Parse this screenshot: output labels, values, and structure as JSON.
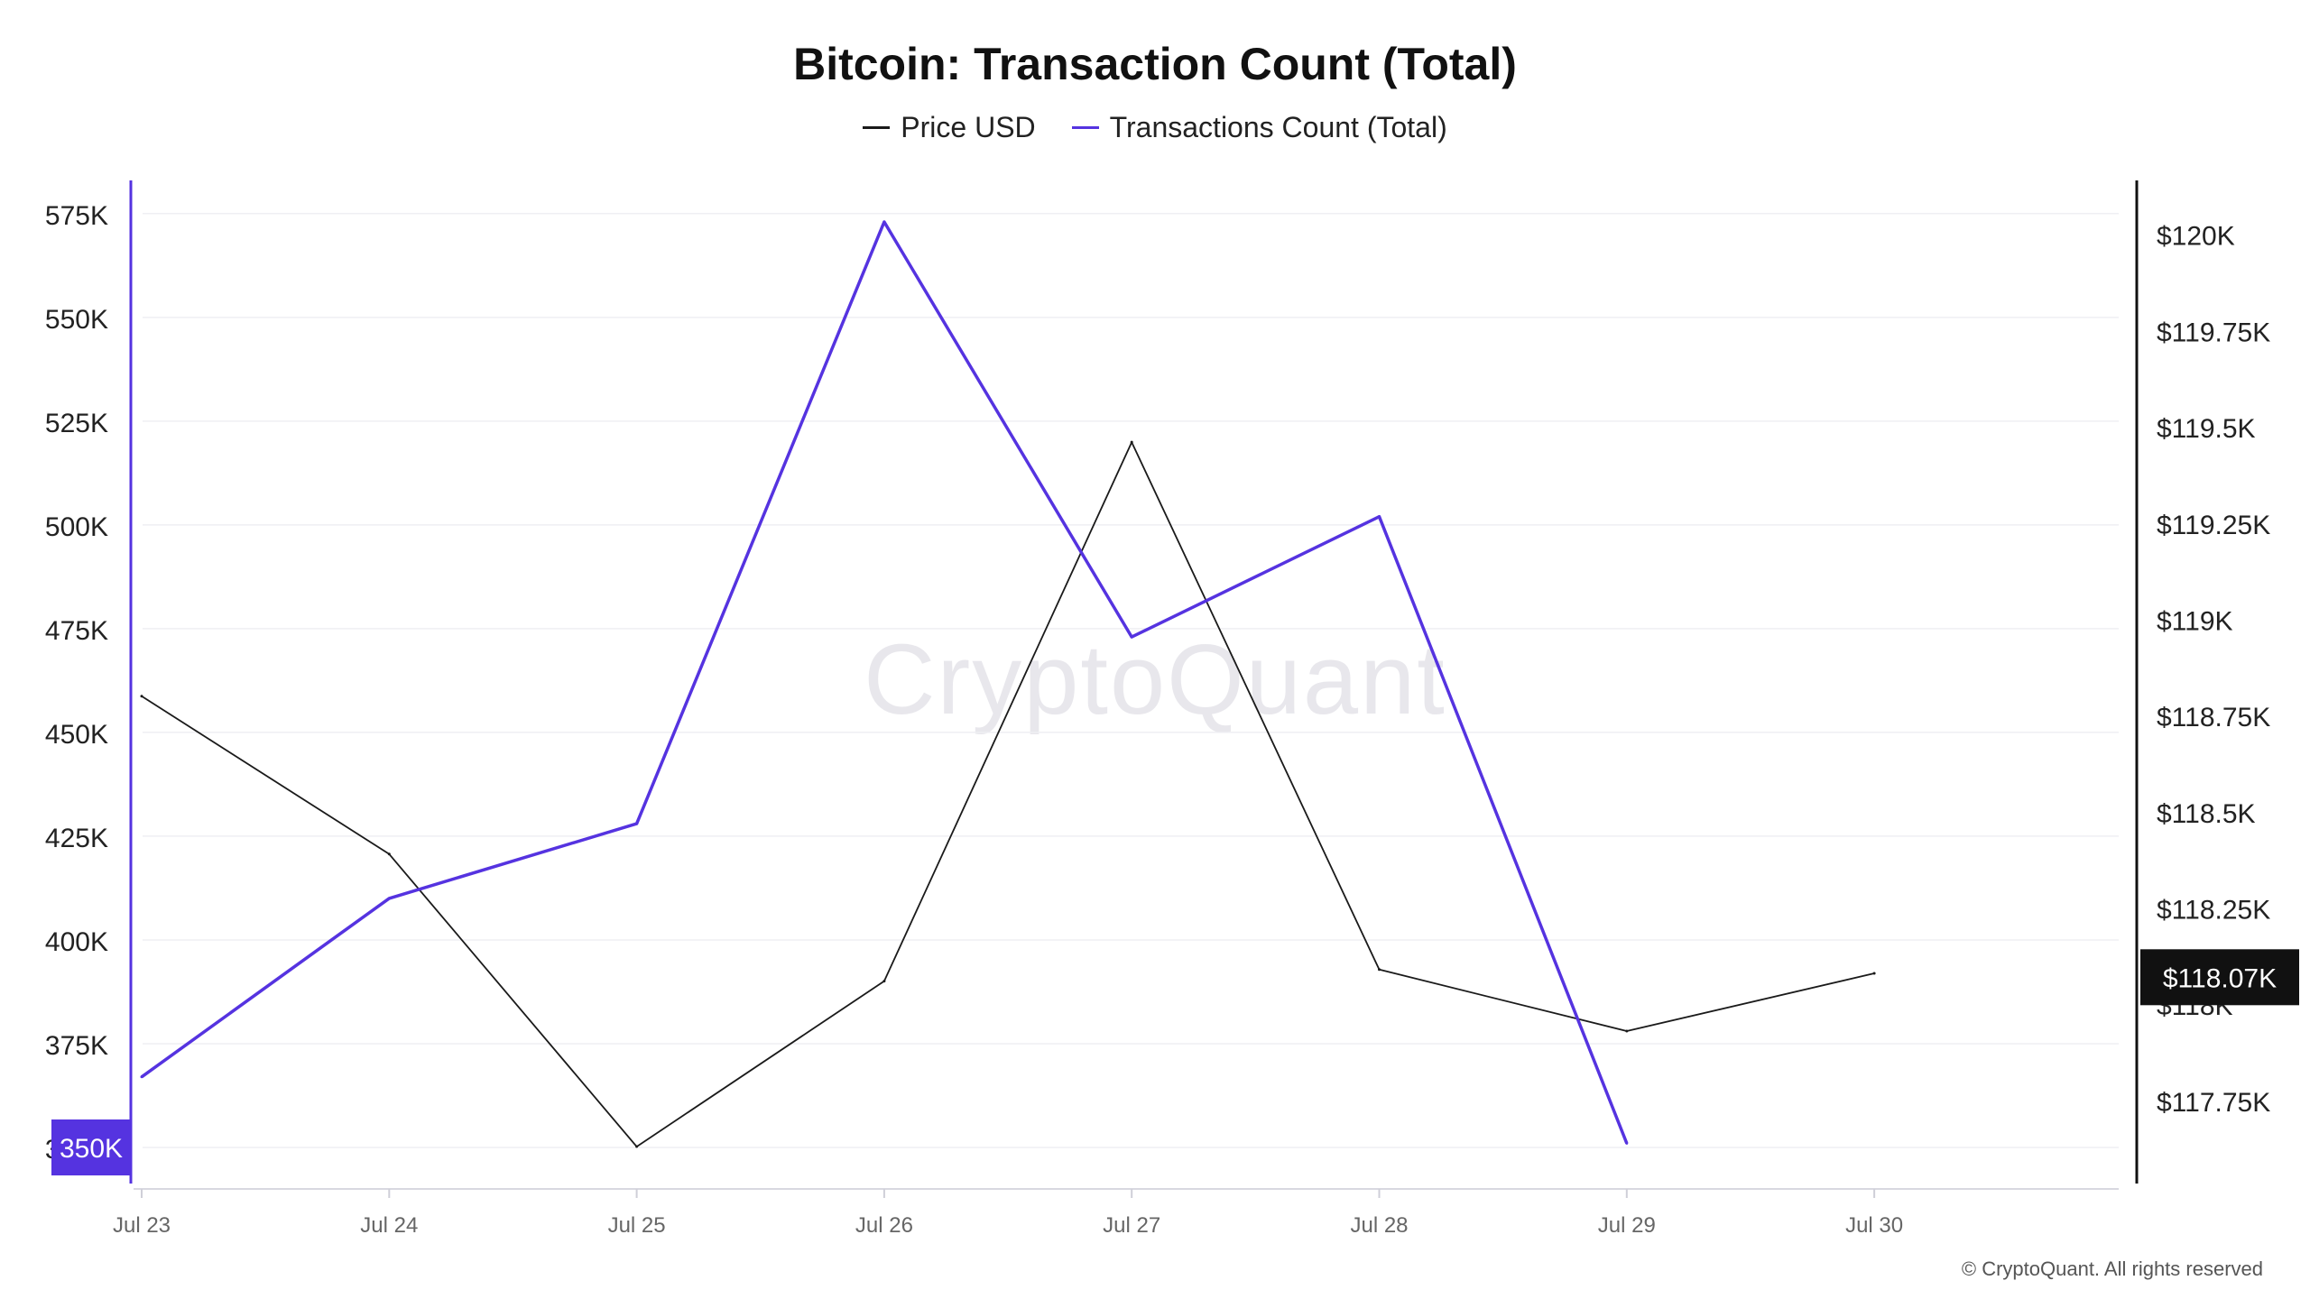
{
  "chart_data": {
    "type": "line",
    "title": "Bitcoin: Transaction Count (Total)",
    "categories": [
      "Jul 23",
      "Jul 24",
      "Jul 25",
      "Jul 26",
      "Jul 27",
      "Jul 28",
      "Jul 29",
      "Jul 30"
    ],
    "series": [
      {
        "name": "Price USD",
        "axis": "right",
        "color": "#1a1a1a",
        "values": [
          118800,
          118390,
          117630,
          118060,
          119460,
          118090,
          117930,
          118080
        ]
      },
      {
        "name": "Transactions Count (Total)",
        "axis": "left",
        "color": "#5533e0",
        "values": [
          367000,
          410000,
          428000,
          573000,
          473000,
          502000,
          351000,
          null
        ]
      }
    ],
    "left_axis": {
      "ticks": [
        350000,
        375000,
        400000,
        425000,
        450000,
        475000,
        500000,
        525000,
        550000,
        575000
      ],
      "tick_labels": [
        "350K",
        "375K",
        "400K",
        "425K",
        "450K",
        "475K",
        "500K",
        "525K",
        "550K",
        "575K"
      ],
      "ylim": [
        340000,
        583000
      ],
      "highlight_label": "350K",
      "highlight_value": 350000,
      "highlight_color": "#5533e0"
    },
    "right_axis": {
      "ticks": [
        117750,
        118000,
        118250,
        118500,
        118750,
        119000,
        119250,
        119500,
        119750,
        120000
      ],
      "tick_labels": [
        "$117.75K",
        "$118K",
        "$118.25K",
        "$118.5K",
        "$118.75K",
        "$119K",
        "$119.25K",
        "$119.5K",
        "$119.75K",
        "$120K"
      ],
      "ylim": [
        117520,
        120140
      ],
      "highlight_label": "$118.07K",
      "highlight_value": 118070,
      "highlight_color": "#111111"
    },
    "grid": true,
    "legend_position": "top-center"
  },
  "watermark": "CryptoQuant",
  "copyright": "© CryptoQuant. All rights reserved"
}
